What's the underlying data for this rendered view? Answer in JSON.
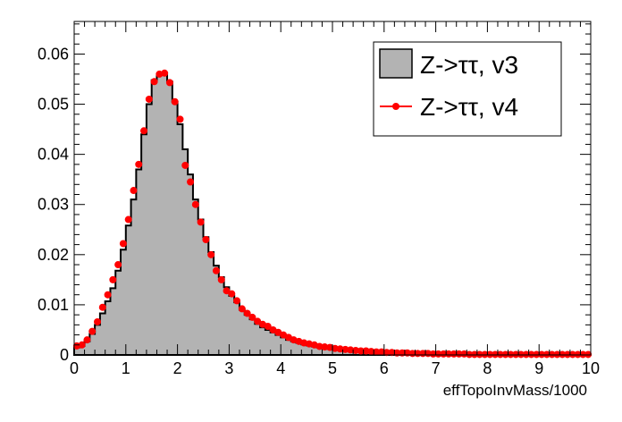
{
  "chart_data": {
    "type": "histogram",
    "xlabel": "effTopoInvMass/1000",
    "ylabel": "",
    "xlim": [
      0,
      10
    ],
    "ylim": [
      0,
      0.0665
    ],
    "x_ticks": [
      "0",
      "1",
      "2",
      "3",
      "4",
      "5",
      "6",
      "7",
      "8",
      "9",
      "10"
    ],
    "y_ticks": [
      "0",
      "0.01",
      "0.02",
      "0.03",
      "0.04",
      "0.05",
      "0.06"
    ],
    "grid": false,
    "legend_position": "top-right",
    "bin_edges_range": [
      0,
      10
    ],
    "bin_width": 0.1,
    "series": [
      {
        "name": "Z->ττ, v3",
        "style": "filled-histogram",
        "fill": "#b3b3b3",
        "line": "#000000",
        "values": [
          0.0015,
          0.0018,
          0.0027,
          0.0042,
          0.006,
          0.0083,
          0.0107,
          0.0133,
          0.0168,
          0.021,
          0.0258,
          0.031,
          0.037,
          0.044,
          0.05,
          0.0548,
          0.056,
          0.056,
          0.0545,
          0.0505,
          0.046,
          0.041,
          0.036,
          0.031,
          0.027,
          0.0235,
          0.0205,
          0.0178,
          0.0155,
          0.0135,
          0.0118,
          0.0105,
          0.009,
          0.008,
          0.0071,
          0.0062,
          0.0055,
          0.005,
          0.0045,
          0.004,
          0.0035,
          0.003,
          0.0027,
          0.0024,
          0.0021,
          0.0019,
          0.0017,
          0.0015,
          0.0013,
          0.0012,
          0.0011,
          0.001,
          0.0009,
          0.0008,
          0.0007,
          0.0006,
          0.0006,
          0.0005,
          0.0005,
          0.0004,
          0.0004,
          0.0004,
          0.0003,
          0.0003,
          0.0003,
          0.0003,
          0.0002,
          0.0002,
          0.0002,
          0.0002,
          0.0002,
          0.0002,
          0.0002,
          0.0002,
          0.0001,
          0.0001,
          0.0001,
          0.0001,
          0.0001,
          0.0001,
          0.0001,
          0.0001,
          0.0001,
          0.0001,
          0.0001,
          0.0001,
          0.0001,
          0.0001,
          0.0001,
          0.0001,
          0.0001,
          0.0001,
          0.0001,
          0.0001,
          0.0001,
          0.0001,
          0.0001,
          0.0001,
          0.0001,
          0.0001
        ]
      },
      {
        "name": "Z->ττ, v4",
        "style": "markers",
        "color": "#ff0000",
        "values": [
          0.0018,
          0.002,
          0.003,
          0.0047,
          0.0066,
          0.0095,
          0.012,
          0.015,
          0.018,
          0.0222,
          0.027,
          0.0328,
          0.038,
          0.0447,
          0.051,
          0.0545,
          0.056,
          0.0562,
          0.0543,
          0.0505,
          0.047,
          0.0378,
          0.0345,
          0.03,
          0.0265,
          0.023,
          0.02,
          0.0168,
          0.015,
          0.0128,
          0.0122,
          0.0108,
          0.0092,
          0.0083,
          0.0075,
          0.0067,
          0.0061,
          0.0057,
          0.005,
          0.0045,
          0.004,
          0.0035,
          0.003,
          0.0027,
          0.0024,
          0.0022,
          0.002,
          0.0017,
          0.0016,
          0.0015,
          0.0013,
          0.0012,
          0.0011,
          0.001,
          0.0009,
          0.0008,
          0.0008,
          0.0007,
          0.0006,
          0.0006,
          0.0005,
          0.0005,
          0.0004,
          0.0004,
          0.0004,
          0.0003,
          0.0003,
          0.0003,
          0.0003,
          0.0002,
          0.0002,
          0.0002,
          0.0002,
          0.0002,
          0.0002,
          0.0002,
          0.0001,
          0.0001,
          0.0001,
          0.0001,
          0.0001,
          0.0001,
          0.0001,
          0.0001,
          0.0001,
          0.0001,
          0.0001,
          0.0001,
          0.0001,
          0.0001,
          0.0001,
          0.0001,
          0.0001,
          0.0001,
          0.0001,
          0.0001,
          0.0001,
          0.0001,
          0.0001,
          0.0001
        ]
      }
    ]
  }
}
